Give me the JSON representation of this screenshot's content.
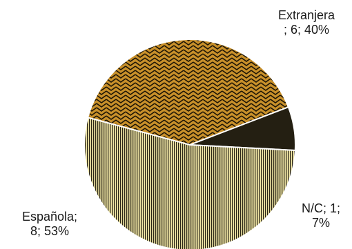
{
  "chart_data": {
    "type": "pie",
    "slices": [
      {
        "label": "Extranjera",
        "value": 6,
        "percent": 40,
        "fill": "#c8902a",
        "pattern": "zigzag",
        "pattern_color": "#1e1606",
        "label_lines": [
          "Extranjera",
          "; 6; 40%"
        ]
      },
      {
        "label": "N/C",
        "value": 1,
        "percent": 7,
        "fill": "#241f12",
        "pattern": "solid",
        "pattern_color": "#241f12",
        "label_lines": [
          "N/C; 1;",
          "7%"
        ]
      },
      {
        "label": "Española",
        "value": 8,
        "percent": 53,
        "fill": "#f0e6a6",
        "pattern": "vertical-stripes",
        "pattern_color": "#2a2516",
        "label_lines": [
          "Española;",
          "8; 53%"
        ]
      }
    ],
    "legend": "none"
  }
}
